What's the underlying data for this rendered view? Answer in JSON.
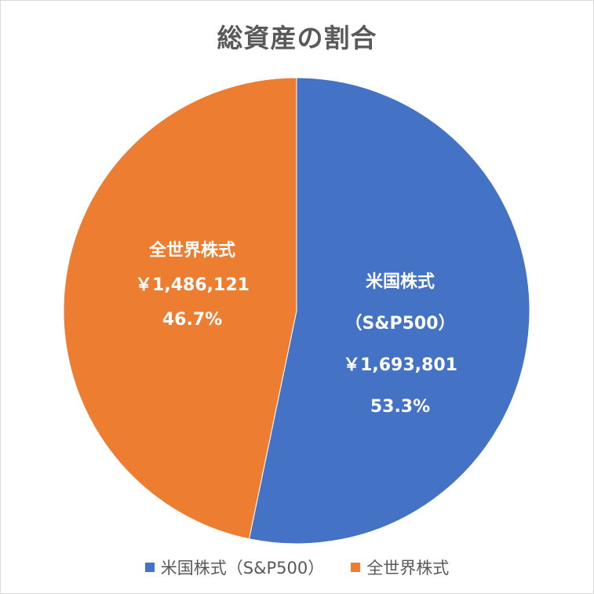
{
  "chart_data": {
    "type": "pie",
    "title": "総資産の割合",
    "slices": [
      {
        "name": "米国株式（S&P500）",
        "label_lines": [
          "米国株式",
          "（S&P500）",
          "￥1,693,801",
          "53.3%"
        ],
        "value": 1693801,
        "percent": 53.3,
        "color": "#4472c4"
      },
      {
        "name": "全世界株式",
        "label_lines": [
          "全世界株式",
          "￥1,486,121",
          "46.7%"
        ],
        "value": 1486121,
        "percent": 46.7,
        "color": "#ed7d31"
      }
    ],
    "legend": {
      "position": "bottom",
      "items": [
        "米国株式（S&P500）",
        "全世界株式"
      ]
    }
  }
}
